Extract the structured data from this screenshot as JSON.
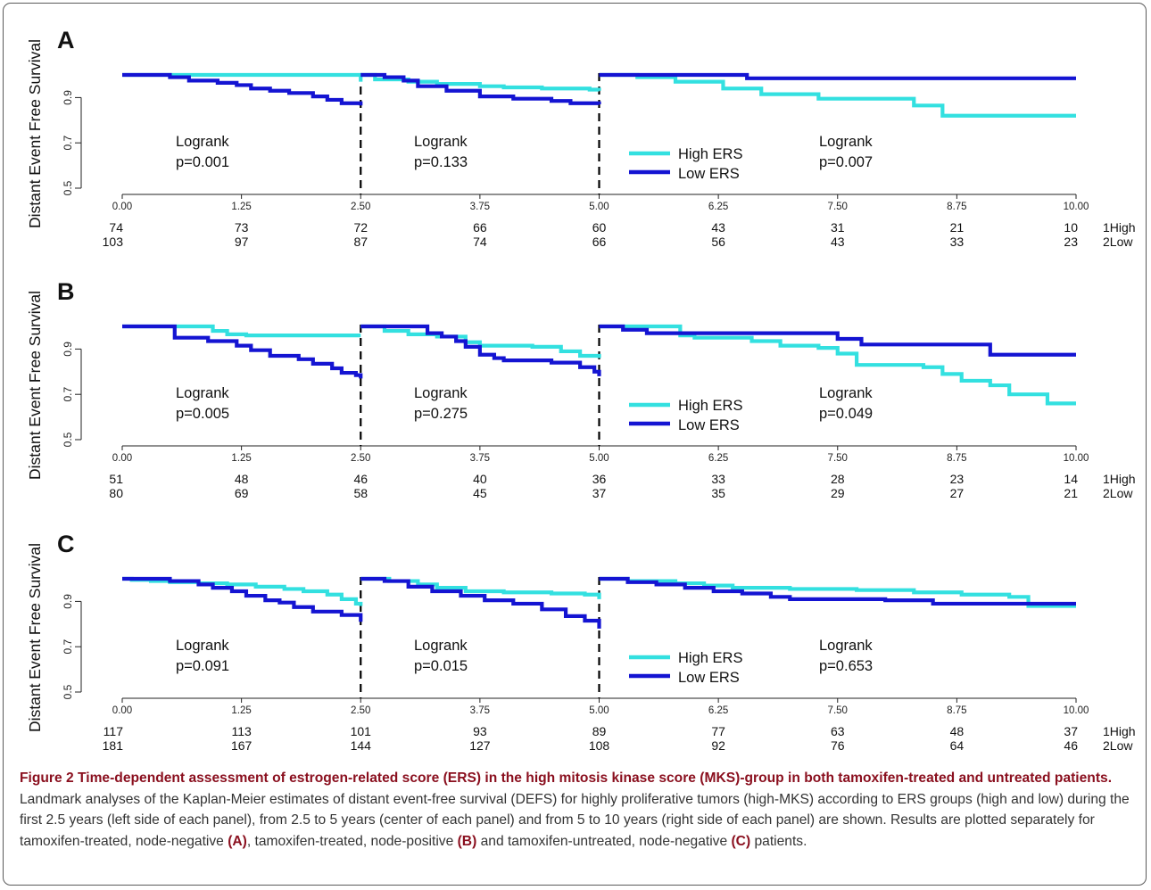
{
  "y_axis_label": "Distant Event Free Survival",
  "legend": {
    "high": "High ERS",
    "low": "Low ERS"
  },
  "colors": {
    "high": "#33e0e0",
    "low": "#1414d2",
    "axis": "#222222",
    "divider": "#000000"
  },
  "risk_labels": [
    "1High",
    "2Low"
  ],
  "caption": {
    "title": "Figure 2 Time-dependent assessment of estrogen-related score (ERS) in the high mitosis kinase score (MKS)-group in both tamoxifen-treated and untreated patients.",
    "text_1": " Landmark analyses of the Kaplan-Meier estimates of distant event-free survival (DEFS) for highly proliferative tumors (high-MKS) according to ERS groups (high and low) during the first 2.5 years (left side of each panel), from 2.5 to 5 years (center of each panel) and from 5 to 10 years (right side of each panel) are shown. Results are plotted separately for tamoxifen-treated, node-negative ",
    "tag_a": "(A)",
    "text_2": ", tamoxifen-treated, node-positive ",
    "tag_b": "(B)",
    "text_3": " and tamoxifen-untreated, node-negative ",
    "tag_c": "(C)",
    "text_4": " patients."
  },
  "chart_data": [
    {
      "panel": "A",
      "type": "line",
      "x_ticks": [
        "0.00",
        "1.25",
        "2.50",
        "3.75",
        "5.00",
        "6.25",
        "7.50",
        "8.75",
        "10.00"
      ],
      "y_ticks": [
        "0.5",
        "0.7",
        "0.9"
      ],
      "xlim": [
        0,
        10
      ],
      "ylim": [
        0.5,
        1.0
      ],
      "tests": [
        {
          "label": "Logrank",
          "p": "p=0.001"
        },
        {
          "label": "Logrank",
          "p": "p=0.133"
        },
        {
          "label": "Logrank",
          "p": "p=0.007"
        }
      ],
      "series": [
        {
          "name": "High ERS",
          "segments": [
            [
              [
                0,
                1.0
              ],
              [
                2.45,
                1.0
              ],
              [
                2.5,
                0.97
              ]
            ],
            [
              [
                2.5,
                1.0
              ],
              [
                2.65,
                0.98
              ],
              [
                3.0,
                0.97
              ],
              [
                3.3,
                0.96
              ],
              [
                3.75,
                0.95
              ],
              [
                4.0,
                0.945
              ],
              [
                4.4,
                0.94
              ],
              [
                4.9,
                0.935
              ],
              [
                5.0,
                0.93
              ]
            ],
            [
              [
                5.0,
                1.0
              ],
              [
                5.4,
                0.99
              ],
              [
                5.8,
                0.97
              ],
              [
                6.3,
                0.94
              ],
              [
                6.7,
                0.915
              ],
              [
                7.3,
                0.895
              ],
              [
                8.3,
                0.865
              ],
              [
                8.6,
                0.82
              ],
              [
                10.0,
                0.82
              ]
            ]
          ]
        },
        {
          "name": "Low ERS",
          "segments": [
            [
              [
                0,
                1.0
              ],
              [
                0.35,
                1.0
              ],
              [
                0.5,
                0.99
              ],
              [
                0.7,
                0.975
              ],
              [
                1.0,
                0.965
              ],
              [
                1.2,
                0.955
              ],
              [
                1.35,
                0.94
              ],
              [
                1.55,
                0.93
              ],
              [
                1.75,
                0.92
              ],
              [
                2.0,
                0.905
              ],
              [
                2.15,
                0.89
              ],
              [
                2.3,
                0.875
              ],
              [
                2.5,
                0.865
              ]
            ],
            [
              [
                2.5,
                1.0
              ],
              [
                2.75,
                0.99
              ],
              [
                2.95,
                0.975
              ],
              [
                3.1,
                0.95
              ],
              [
                3.4,
                0.93
              ],
              [
                3.75,
                0.905
              ],
              [
                4.1,
                0.895
              ],
              [
                4.5,
                0.885
              ],
              [
                4.7,
                0.875
              ],
              [
                5.0,
                0.87
              ]
            ],
            [
              [
                5.0,
                1.0
              ],
              [
                6.5,
                1.0
              ],
              [
                6.55,
                0.985
              ],
              [
                10.0,
                0.985
              ]
            ]
          ]
        }
      ],
      "risk_table": {
        "times": [
          "0.00",
          "1.25",
          "2.50",
          "3.75",
          "5.00",
          "6.25",
          "7.50",
          "8.75",
          "10.00"
        ],
        "high": [
          "74",
          "73",
          "72",
          "66",
          "60",
          "43",
          "31",
          "21",
          "10"
        ],
        "low": [
          "103",
          "97",
          "87",
          "74",
          "66",
          "56",
          "43",
          "33",
          "23"
        ]
      }
    },
    {
      "panel": "B",
      "type": "line",
      "x_ticks": [
        "0.00",
        "1.25",
        "2.50",
        "3.75",
        "5.00",
        "6.25",
        "7.50",
        "8.75",
        "10.00"
      ],
      "y_ticks": [
        "0.5",
        "0.7",
        "0.9"
      ],
      "xlim": [
        0,
        10
      ],
      "ylim": [
        0.5,
        1.0
      ],
      "tests": [
        {
          "label": "Logrank",
          "p": "p=0.005"
        },
        {
          "label": "Logrank",
          "p": "p=0.275"
        },
        {
          "label": "Logrank",
          "p": "p=0.049"
        }
      ],
      "series": [
        {
          "name": "High ERS",
          "segments": [
            [
              [
                0,
                1.0
              ],
              [
                0.9,
                1.0
              ],
              [
                0.95,
                0.98
              ],
              [
                1.1,
                0.965
              ],
              [
                1.3,
                0.96
              ],
              [
                2.5,
                0.96
              ]
            ],
            [
              [
                2.5,
                1.0
              ],
              [
                2.75,
                0.98
              ],
              [
                3.0,
                0.965
              ],
              [
                3.3,
                0.955
              ],
              [
                3.6,
                0.93
              ],
              [
                3.75,
                0.915
              ],
              [
                4.3,
                0.91
              ],
              [
                4.6,
                0.89
              ],
              [
                4.8,
                0.87
              ],
              [
                5.0,
                0.86
              ]
            ],
            [
              [
                5.0,
                1.0
              ],
              [
                5.65,
                1.0
              ],
              [
                5.85,
                0.96
              ],
              [
                6.0,
                0.95
              ],
              [
                6.6,
                0.935
              ],
              [
                6.9,
                0.915
              ],
              [
                7.3,
                0.905
              ],
              [
                7.5,
                0.88
              ],
              [
                7.7,
                0.83
              ],
              [
                8.4,
                0.82
              ],
              [
                8.6,
                0.79
              ],
              [
                8.8,
                0.76
              ],
              [
                9.1,
                0.74
              ],
              [
                9.3,
                0.7
              ],
              [
                9.7,
                0.66
              ],
              [
                10.0,
                0.66
              ]
            ]
          ]
        },
        {
          "name": "Low ERS",
          "segments": [
            [
              [
                0,
                1.0
              ],
              [
                0.45,
                1.0
              ],
              [
                0.55,
                0.95
              ],
              [
                0.9,
                0.935
              ],
              [
                1.2,
                0.915
              ],
              [
                1.35,
                0.895
              ],
              [
                1.55,
                0.87
              ],
              [
                1.85,
                0.855
              ],
              [
                2.0,
                0.835
              ],
              [
                2.2,
                0.815
              ],
              [
                2.3,
                0.795
              ],
              [
                2.45,
                0.785
              ],
              [
                2.5,
                0.77
              ]
            ],
            [
              [
                2.5,
                1.0
              ],
              [
                3.05,
                1.0
              ],
              [
                3.2,
                0.97
              ],
              [
                3.35,
                0.955
              ],
              [
                3.5,
                0.935
              ],
              [
                3.6,
                0.91
              ],
              [
                3.75,
                0.875
              ],
              [
                3.9,
                0.86
              ],
              [
                4.0,
                0.85
              ],
              [
                4.5,
                0.84
              ],
              [
                4.8,
                0.82
              ],
              [
                4.95,
                0.8
              ],
              [
                5.0,
                0.78
              ]
            ],
            [
              [
                5.0,
                1.0
              ],
              [
                5.25,
                0.985
              ],
              [
                5.5,
                0.97
              ],
              [
                7.2,
                0.97
              ],
              [
                7.5,
                0.945
              ],
              [
                7.75,
                0.92
              ],
              [
                8.9,
                0.92
              ],
              [
                9.1,
                0.875
              ],
              [
                10.0,
                0.875
              ]
            ]
          ]
        }
      ],
      "risk_table": {
        "times": [
          "0.00",
          "1.25",
          "2.50",
          "3.75",
          "5.00",
          "6.25",
          "7.50",
          "8.75",
          "10.00"
        ],
        "high": [
          "51",
          "48",
          "46",
          "40",
          "36",
          "33",
          "28",
          "23",
          "14"
        ],
        "low": [
          "80",
          "69",
          "58",
          "45",
          "37",
          "35",
          "29",
          "27",
          "21"
        ]
      }
    },
    {
      "panel": "C",
      "type": "line",
      "x_ticks": [
        "0.00",
        "1.25",
        "2.50",
        "3.75",
        "5.00",
        "6.25",
        "7.50",
        "8.75",
        "10.00"
      ],
      "y_ticks": [
        "0.5",
        "0.7",
        "0.9"
      ],
      "xlim": [
        0,
        10
      ],
      "ylim": [
        0.5,
        1.0
      ],
      "tests": [
        {
          "label": "Logrank",
          "p": "p=0.091"
        },
        {
          "label": "Logrank",
          "p": "p=0.015"
        },
        {
          "label": "Logrank",
          "p": "p=0.653"
        }
      ],
      "series": [
        {
          "name": "High ERS",
          "segments": [
            [
              [
                0,
                1.0
              ],
              [
                0.1,
                0.995
              ],
              [
                0.3,
                0.99
              ],
              [
                0.5,
                0.985
              ],
              [
                0.8,
                0.98
              ],
              [
                1.1,
                0.975
              ],
              [
                1.4,
                0.965
              ],
              [
                1.7,
                0.955
              ],
              [
                1.9,
                0.945
              ],
              [
                2.15,
                0.93
              ],
              [
                2.3,
                0.91
              ],
              [
                2.45,
                0.89
              ],
              [
                2.5,
                0.88
              ]
            ],
            [
              [
                2.5,
                1.0
              ],
              [
                2.8,
                0.99
              ],
              [
                3.1,
                0.975
              ],
              [
                3.3,
                0.96
              ],
              [
                3.6,
                0.945
              ],
              [
                4.0,
                0.94
              ],
              [
                4.5,
                0.935
              ],
              [
                4.85,
                0.93
              ],
              [
                5.0,
                0.91
              ]
            ],
            [
              [
                5.0,
                1.0
              ],
              [
                5.3,
                0.99
              ],
              [
                5.8,
                0.98
              ],
              [
                6.1,
                0.97
              ],
              [
                6.4,
                0.96
              ],
              [
                7.0,
                0.955
              ],
              [
                7.7,
                0.95
              ],
              [
                8.3,
                0.94
              ],
              [
                8.8,
                0.93
              ],
              [
                9.3,
                0.92
              ],
              [
                9.5,
                0.88
              ],
              [
                10.0,
                0.88
              ]
            ]
          ]
        },
        {
          "name": "Low ERS",
          "segments": [
            [
              [
                0,
                1.0
              ],
              [
                0.35,
                1.0
              ],
              [
                0.5,
                0.99
              ],
              [
                0.8,
                0.975
              ],
              [
                0.95,
                0.96
              ],
              [
                1.15,
                0.945
              ],
              [
                1.3,
                0.925
              ],
              [
                1.5,
                0.905
              ],
              [
                1.65,
                0.895
              ],
              [
                1.8,
                0.875
              ],
              [
                2.0,
                0.855
              ],
              [
                2.3,
                0.84
              ],
              [
                2.5,
                0.81
              ]
            ],
            [
              [
                2.5,
                1.0
              ],
              [
                2.75,
                0.99
              ],
              [
                3.0,
                0.965
              ],
              [
                3.25,
                0.945
              ],
              [
                3.55,
                0.925
              ],
              [
                3.8,
                0.905
              ],
              [
                4.1,
                0.89
              ],
              [
                4.4,
                0.865
              ],
              [
                4.65,
                0.835
              ],
              [
                4.85,
                0.815
              ],
              [
                5.0,
                0.78
              ]
            ],
            [
              [
                5.0,
                1.0
              ],
              [
                5.3,
                0.985
              ],
              [
                5.6,
                0.975
              ],
              [
                5.9,
                0.96
              ],
              [
                6.2,
                0.945
              ],
              [
                6.5,
                0.935
              ],
              [
                6.8,
                0.92
              ],
              [
                7.0,
                0.91
              ],
              [
                8.0,
                0.905
              ],
              [
                8.5,
                0.89
              ],
              [
                10.0,
                0.89
              ]
            ]
          ]
        }
      ],
      "risk_table": {
        "times": [
          "0.00",
          "1.25",
          "2.50",
          "3.75",
          "5.00",
          "6.25",
          "7.50",
          "8.75",
          "10.00"
        ],
        "high": [
          "117",
          "113",
          "101",
          "93",
          "89",
          "77",
          "63",
          "48",
          "37"
        ],
        "low": [
          "181",
          "167",
          "144",
          "127",
          "108",
          "92",
          "76",
          "64",
          "46"
        ]
      }
    }
  ]
}
